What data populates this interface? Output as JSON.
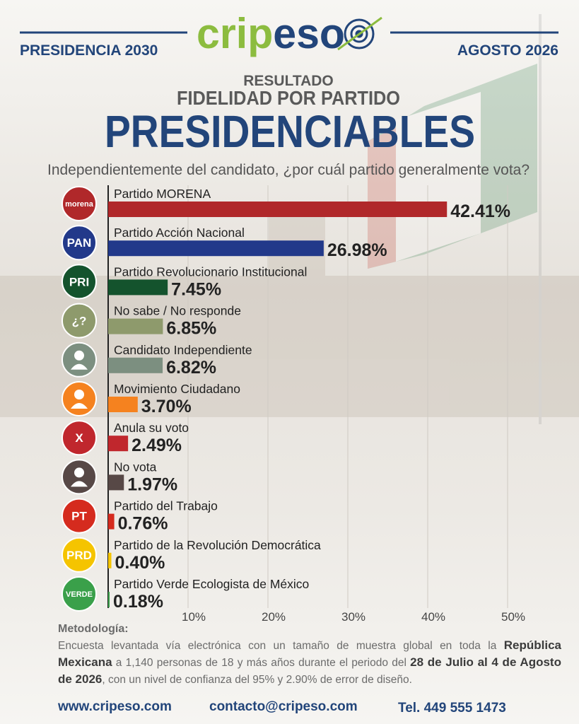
{
  "header": {
    "logo": "cripeso",
    "left": "PRESIDENCIA 2030",
    "right": "AGOSTO 2026",
    "kicker": "RESULTADO",
    "subtitle": "FIDELIDAD POR PARTIDO"
  },
  "chart_data": {
    "type": "hbar",
    "title": "PRESIDENCIABLES",
    "question": "Independientemente del candidato, ¿por cuál partido generalmente vota?",
    "categories": [
      "Partido MORENA",
      "Partido Acción Nacional",
      "Partido Revolucionario Institucional",
      "No sabe / No responde",
      "Candidato Independiente",
      "Movimiento Ciudadano",
      "Anula su voto",
      "No vota",
      "Partido del Trabajo",
      "Partido de la Revolución Democrática",
      "Partido Verde Ecologista de México"
    ],
    "logos": [
      "morena",
      "PAN",
      "PRI",
      "¿?",
      null,
      null,
      "X",
      null,
      "PT",
      "PRD",
      "VERDE"
    ],
    "values": [
      42.41,
      26.98,
      7.45,
      6.85,
      6.82,
      3.7,
      2.49,
      1.97,
      0.76,
      0.4,
      0.18
    ],
    "value_labels": [
      "42.41%",
      "26.98%",
      "7.45%",
      "6.85%",
      "6.82%",
      "3.70%",
      "2.49%",
      "1.97%",
      "0.76%",
      "0.40%",
      "0.18%"
    ],
    "colors": [
      "#b0282a",
      "#22398a",
      "#14532d",
      "#8e9a6c",
      "#7c8f80",
      "#f5821f",
      "#c0272d",
      "#574846",
      "#d52b1e",
      "#f5c400",
      "#3aa04a"
    ],
    "xlim": [
      0,
      50
    ],
    "xticks": [
      {
        "value": 10,
        "label": "10%"
      },
      {
        "value": 20,
        "label": "20%"
      },
      {
        "value": 30,
        "label": "30%"
      },
      {
        "value": 40,
        "label": "40%"
      },
      {
        "value": 50,
        "label": "50%"
      }
    ],
    "grid": true
  },
  "methodology": {
    "heading": "Metodología:",
    "segments": [
      {
        "text": "Encuesta levantada vía electrónica con un tamaño de muestra global en toda la ",
        "bold": false
      },
      {
        "text": "República Mexicana",
        "bold": true
      },
      {
        "text": " a 1,140 personas de 18 y más años durante el periodo del ",
        "bold": false
      },
      {
        "text": "28 de Julio al 4 de Agosto de 2026",
        "bold": true
      },
      {
        "text": ", con un nivel de confianza del 95% y 2.90% de error de diseño.",
        "bold": false
      }
    ]
  },
  "footer": {
    "web": "www.cripeso.com",
    "email": "contacto@cripeso.com",
    "phone": "Tel. 449 555 1473"
  }
}
